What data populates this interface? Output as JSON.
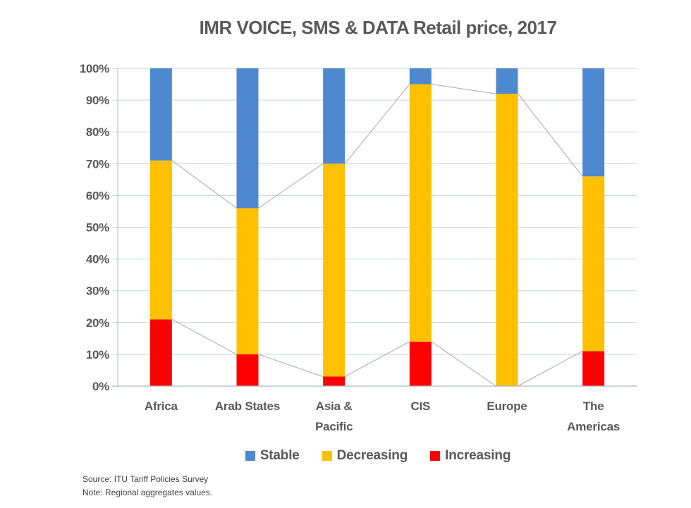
{
  "chart_data": {
    "type": "bar",
    "subtype": "stacked-100-percent",
    "title": "IMR VOICE, SMS & DATA Retail price, 2017",
    "categories": [
      "Africa",
      "Arab States",
      "Asia &\nPacific",
      "CIS",
      "Europe",
      "The\nAmericas"
    ],
    "series": [
      {
        "name": "Increasing",
        "color": "#FF0000",
        "values": [
          21,
          10,
          3,
          14,
          0,
          11
        ]
      },
      {
        "name": "Decreasing",
        "color": "#FFC000",
        "values": [
          50,
          46,
          67,
          81,
          92,
          55
        ]
      },
      {
        "name": "Stable",
        "color": "#4E89CF",
        "values": [
          29,
          44,
          30,
          5,
          8,
          34
        ]
      }
    ],
    "stack_total": 100,
    "ylim": [
      0,
      100
    ],
    "y_ticks": [
      "0%",
      "10%",
      "20%",
      "30%",
      "40%",
      "50%",
      "60%",
      "70%",
      "80%",
      "90%",
      "100%"
    ],
    "grid": true,
    "series_connector_lines": true,
    "legend_position": "bottom",
    "legend": [
      {
        "label": "Stable",
        "color": "#4E89CF"
      },
      {
        "label": "Decreasing",
        "color": "#FFC000"
      },
      {
        "label": "Increasing",
        "color": "#FF0000"
      }
    ]
  },
  "footer": {
    "source_line": "Source: ITU Tariff Policies Survey",
    "note_line": "Note: Regional aggregates values."
  },
  "colors": {
    "text_gray": "#595959",
    "grid": "#C9D2DF",
    "axis": "#AEB8C6",
    "connector": "#A8A8A8",
    "footer_text": "#3F3F3F",
    "background": "#FFFFFF"
  }
}
